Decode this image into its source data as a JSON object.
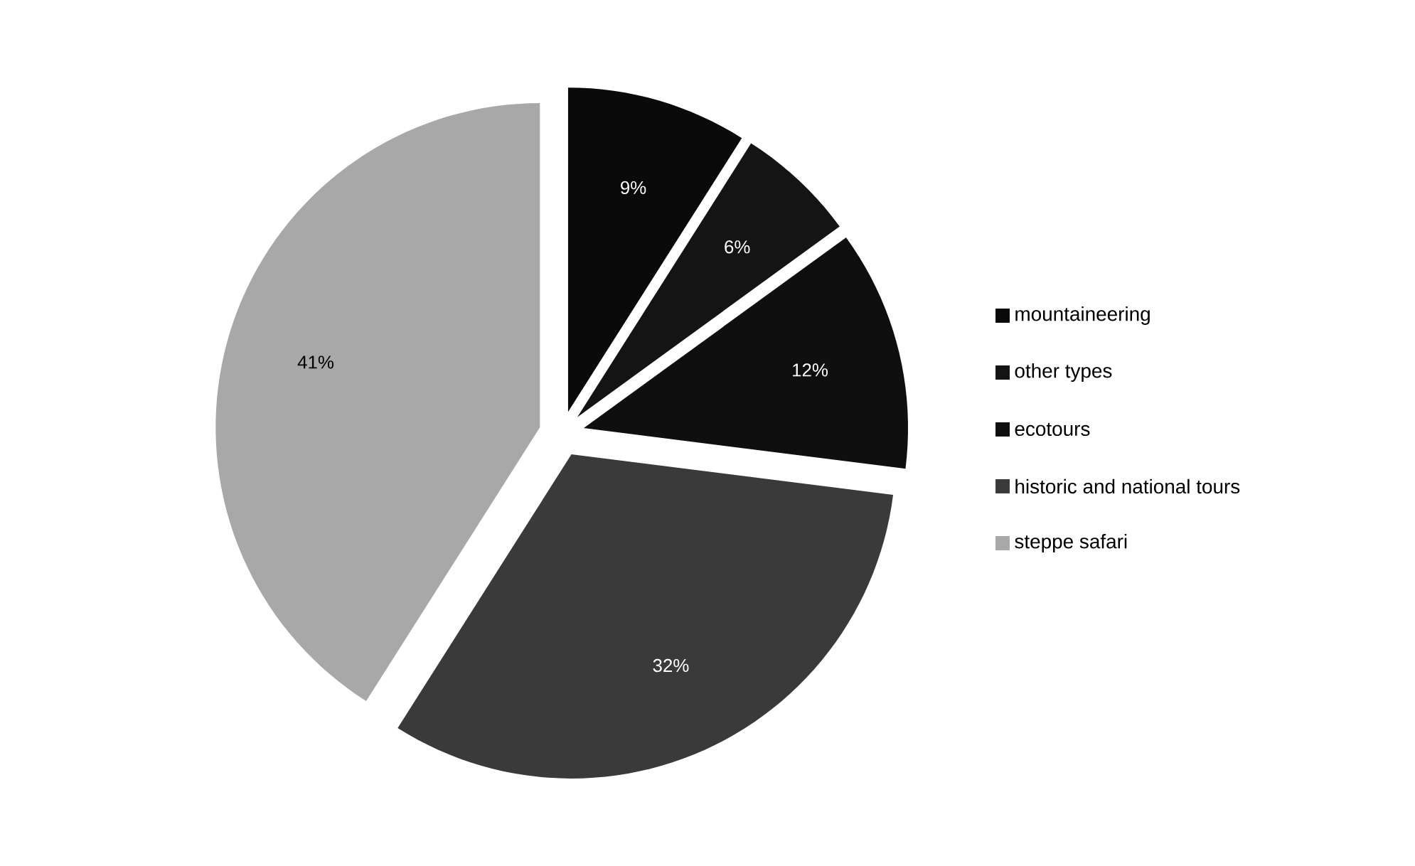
{
  "chart_data": {
    "type": "pie",
    "categories": [
      "mountaineering",
      "other types",
      "ecotours",
      "historic and national tours",
      "steppe safari"
    ],
    "values": [
      9,
      6,
      12,
      32,
      41
    ],
    "value_labels": [
      "9%",
      "6%",
      "12%",
      "32%",
      "41%"
    ],
    "colors": [
      "#0a0a0a",
      "#141414",
      "#0f0f0f",
      "#3a3a3a",
      "#a8a8a8"
    ],
    "legend": "right"
  }
}
